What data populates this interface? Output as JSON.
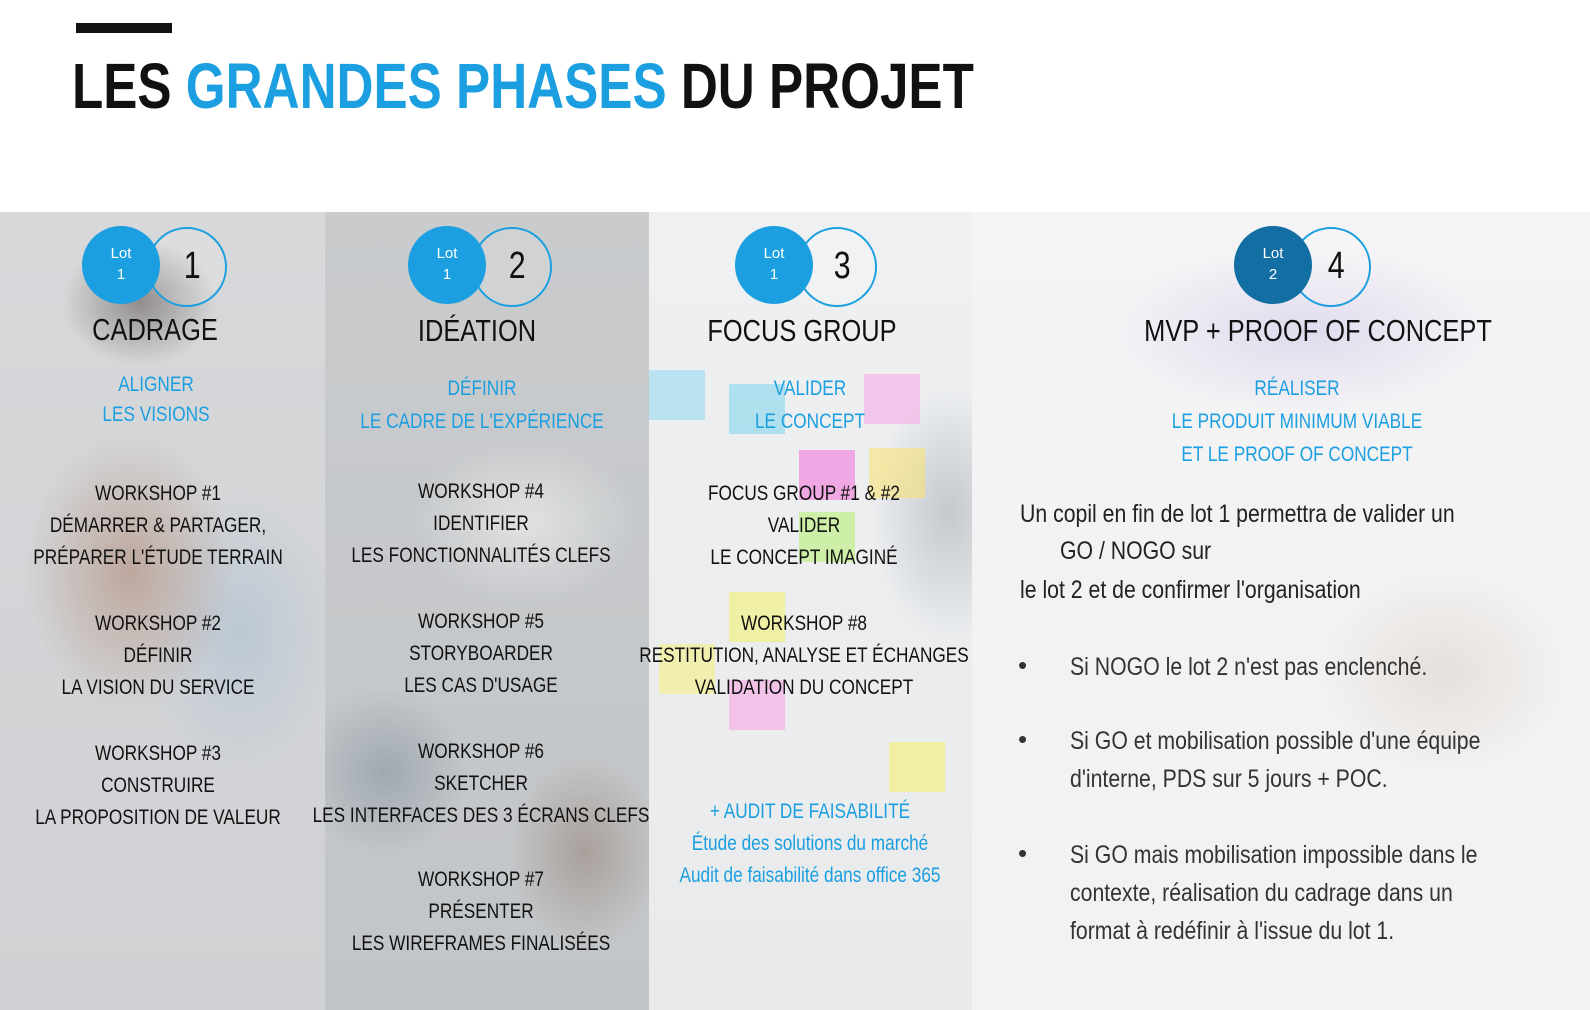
{
  "title": {
    "part1": "LES ",
    "accent": "GRANDES PHASES",
    "part2": " DU PROJET"
  },
  "colors": {
    "accent": "#1b9fe0",
    "lot_dark": "#136ea4"
  },
  "phases": [
    {
      "lot_label": "Lot",
      "lot_num": "1",
      "phase_num": "1",
      "heading": "CADRAGE",
      "subtitle": [
        "ALIGNER",
        "LES VISIONS"
      ],
      "items": [
        [
          "WORKSHOP #1",
          "DÉMARRER & PARTAGER,",
          "PRÉPARER L'ÉTUDE TERRAIN"
        ],
        [
          "WORKSHOP #2",
          "DÉFINIR",
          "LA VISION DU SERVICE"
        ],
        [
          "WORKSHOP #3",
          "CONSTRUIRE",
          "LA PROPOSITION DE VALEUR"
        ]
      ]
    },
    {
      "lot_label": "Lot",
      "lot_num": "1",
      "phase_num": "2",
      "heading": "IDÉATION",
      "subtitle": [
        "DÉFINIR",
        "LE CADRE DE L'EXPÉRIENCE"
      ],
      "items": [
        [
          "WORKSHOP #4",
          "IDENTIFIER",
          "LES FONCTIONNALITÉS CLEFS"
        ],
        [
          "WORKSHOP #5",
          "STORYBOARDER",
          "LES CAS D'USAGE"
        ],
        [
          "WORKSHOP #6",
          "SKETCHER",
          "LES INTERFACES DES 3 ÉCRANS CLEFS"
        ],
        [
          "WORKSHOP #7",
          "PRÉSENTER",
          "LES WIREFRAMES FINALISÉES"
        ]
      ]
    },
    {
      "lot_label": "Lot",
      "lot_num": "1",
      "phase_num": "3",
      "heading": "FOCUS GROUP",
      "subtitle": [
        "VALIDER",
        "LE CONCEPT"
      ],
      "items": [
        [
          "FOCUS GROUP #1 & #2",
          "VALIDER",
          "LE CONCEPT IMAGINÉ"
        ],
        [
          "WORKSHOP #8",
          "RESTITUTION, ANALYSE ET ÉCHANGES",
          "VALIDATION DU CONCEPT"
        ]
      ],
      "audit": [
        "+ AUDIT DE FAISABILITÉ",
        "Étude des solutions du marché",
        "Audit de faisabilité dans office 365"
      ]
    },
    {
      "lot_label": "Lot",
      "lot_num": "2",
      "phase_num": "4",
      "heading": "MVP + PROOF OF CONCEPT",
      "subtitle": [
        "RÉALISER",
        "LE PRODUIT MINIMUM VIABLE",
        "ET LE PROOF OF CONCEPT"
      ],
      "paragraph": [
        "Un copil en fin de lot 1 permettra de valider un",
        "GO / NOGO sur",
        "le lot 2 et de confirmer l'organisation"
      ],
      "bullet_symbol": "•",
      "bullets": [
        [
          "Si NOGO le lot 2 n'est pas enclenché."
        ],
        [
          "Si GO et mobilisation possible d'une équipe",
          "d'interne, PDS sur 5 jours + POC."
        ],
        [
          "Si GO mais mobilisation impossible dans le",
          "contexte, réalisation du cadrage dans un",
          "format à redéfinir à l'issue du lot 1."
        ]
      ]
    }
  ]
}
